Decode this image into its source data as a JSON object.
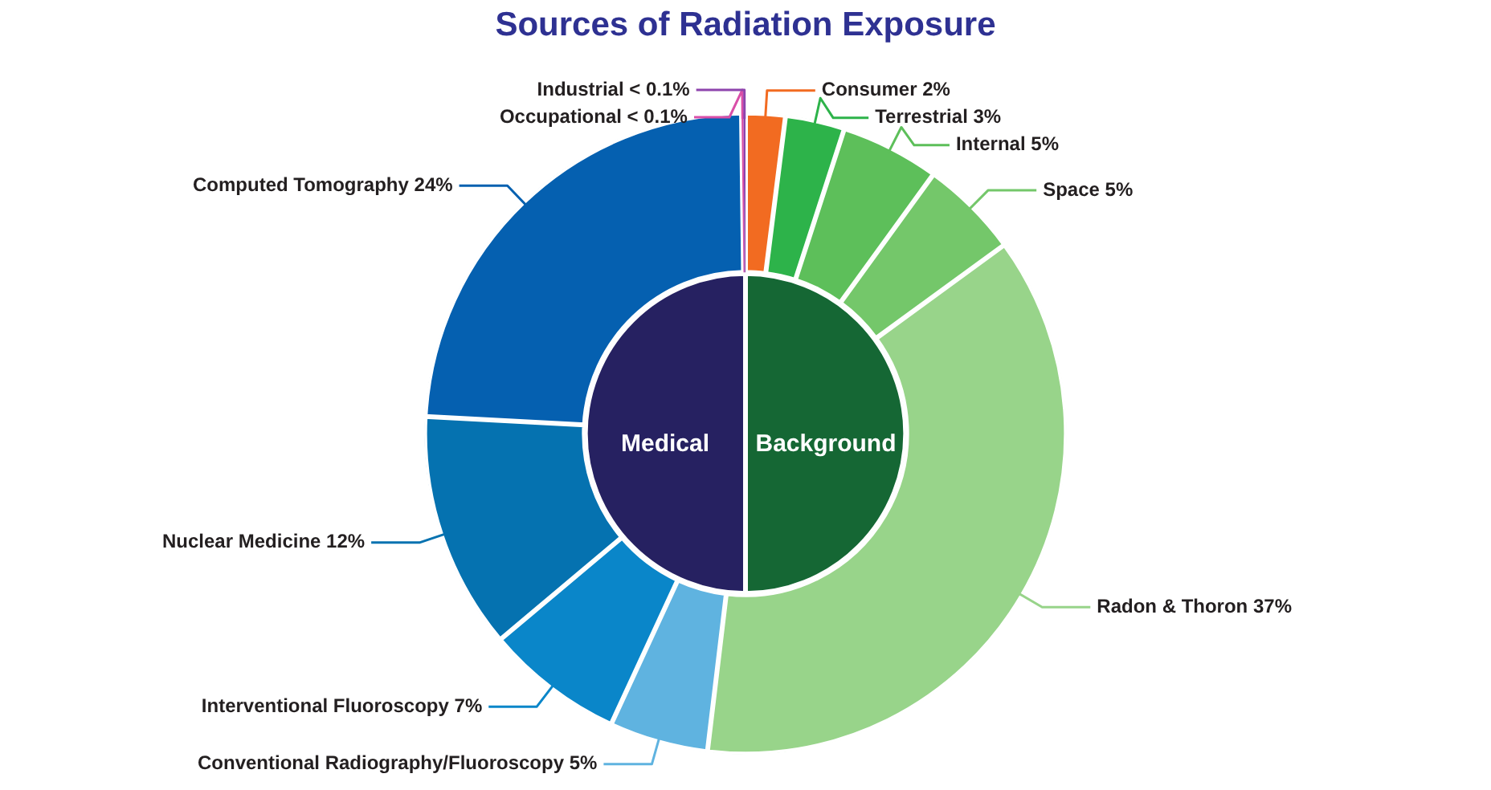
{
  "chart_data": [
    {
      "type": "donut",
      "title": "Sources of Radiation Exposure",
      "categories": [
        "Consumer",
        "Terrestrial",
        "Internal",
        "Space",
        "Radon & Thoron",
        "Conventional Radiography/Fluoroscopy",
        "Interventional Fluoroscopy",
        "Nuclear Medicine",
        "Computed Tomography",
        "Occupational",
        "Industrial"
      ],
      "values": [
        2,
        3,
        5,
        5,
        37,
        5,
        7,
        12,
        24,
        0.1,
        0.1
      ],
      "value_labels": [
        "2%",
        "3%",
        "5%",
        "5%",
        "37%",
        "5%",
        "7%",
        "12%",
        "24%",
        "< 0.1%",
        "< 0.1%"
      ],
      "colors": [
        "#f26b21",
        "#2db34a",
        "#5dbf5a",
        "#74c76a",
        "#98d48a",
        "#5fb3e0",
        "#0a86c9",
        "#0572b0",
        "#0560b0",
        "#d94fa8",
        "#8e44ad"
      ],
      "legend": false
    },
    {
      "type": "pie",
      "categories": [
        "Background",
        "Medical"
      ],
      "values": [
        50,
        50
      ],
      "colors": [
        "#156734",
        "#262161"
      ],
      "legend": false
    }
  ]
}
